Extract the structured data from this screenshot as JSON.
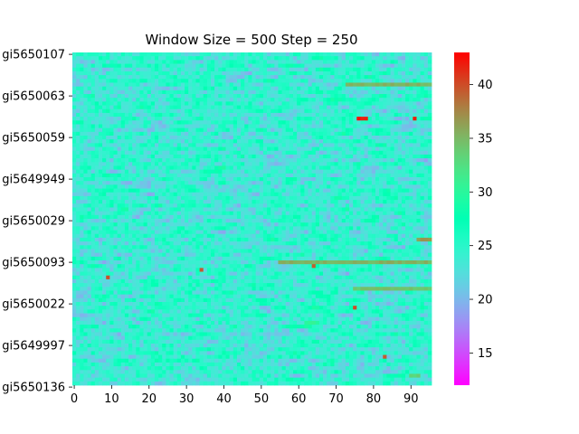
{
  "chart_data": {
    "type": "heatmap",
    "title": "Window Size = 500 Step = 250",
    "xlabel": "",
    "ylabel": "",
    "x_range": [
      0,
      96
    ],
    "x_ticks": [
      0,
      10,
      20,
      30,
      40,
      50,
      60,
      70,
      80,
      90
    ],
    "row_count": 88,
    "y_tick_labels": [
      "gi5650107",
      "gi5650063",
      "gi5650059",
      "gi5649949",
      "gi5650029",
      "gi5650093",
      "gi5650022",
      "gi5649997",
      "gi5650136"
    ],
    "y_tick_rows": [
      0,
      11,
      22,
      33,
      44,
      55,
      66,
      77,
      88
    ],
    "colormap": "rainbow",
    "value_range": [
      12,
      43
    ],
    "colorbar_ticks": [
      15,
      20,
      25,
      30,
      35,
      40
    ],
    "base_value": 24,
    "highlights": [
      {
        "row": 8,
        "from": 73,
        "to": 96,
        "value": 36
      },
      {
        "row": 17,
        "from": 76,
        "to": 79,
        "value": 43
      },
      {
        "row": 17,
        "from": 91,
        "to": 92,
        "value": 42
      },
      {
        "row": 49,
        "from": 92,
        "to": 96,
        "value": 37
      },
      {
        "row": 55,
        "from": 55,
        "to": 96,
        "value": 36
      },
      {
        "row": 56,
        "from": 64,
        "to": 65,
        "value": 40
      },
      {
        "row": 57,
        "from": 34,
        "to": 35,
        "value": 40
      },
      {
        "row": 59,
        "from": 9,
        "to": 10,
        "value": 41
      },
      {
        "row": 62,
        "from": 75,
        "to": 96,
        "value": 35
      },
      {
        "row": 67,
        "from": 75,
        "to": 76,
        "value": 41
      },
      {
        "row": 71,
        "from": 62,
        "to": 66,
        "value": 31
      },
      {
        "row": 80,
        "from": 83,
        "to": 84,
        "value": 40
      },
      {
        "row": 85,
        "from": 90,
        "to": 93,
        "value": 34
      }
    ]
  }
}
